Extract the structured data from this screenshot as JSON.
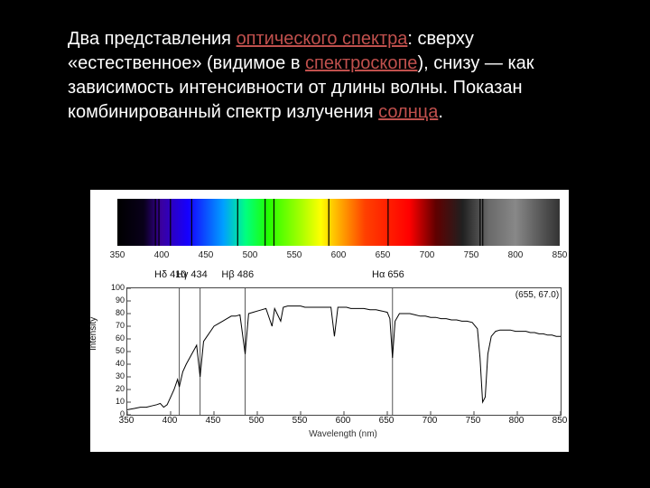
{
  "caption": {
    "t1": "Два представления ",
    "l1": "оптического спектра",
    "t2": ": сверху «естественное» (видимое в ",
    "l2": "спектроскопе",
    "t3": "), снизу — как зависимость интенсивности от длины волны. Показан комбинированный спектр излучения ",
    "l3": "солнца",
    "t4": "."
  },
  "spectrum_band": {
    "panel_bg": "#000000",
    "xmin": 350,
    "xmax": 850,
    "tick_values": [
      350,
      400,
      450,
      500,
      550,
      600,
      650,
      700,
      750,
      800,
      850
    ],
    "gradient_stops": [
      {
        "nm": 350,
        "color": "#000000"
      },
      {
        "nm": 380,
        "color": "#09001a"
      },
      {
        "nm": 400,
        "color": "#3a00a0"
      },
      {
        "nm": 430,
        "color": "#1500ff"
      },
      {
        "nm": 470,
        "color": "#00a0ff"
      },
      {
        "nm": 495,
        "color": "#00ff80"
      },
      {
        "nm": 520,
        "color": "#20ff00"
      },
      {
        "nm": 560,
        "color": "#b0ff00"
      },
      {
        "nm": 580,
        "color": "#ffff00"
      },
      {
        "nm": 600,
        "color": "#ffb000"
      },
      {
        "nm": 630,
        "color": "#ff4000"
      },
      {
        "nm": 680,
        "color": "#ff0000"
      },
      {
        "nm": 710,
        "color": "#600000"
      },
      {
        "nm": 740,
        "color": "#202020"
      },
      {
        "nm": 770,
        "color": "#6a6a6a"
      },
      {
        "nm": 800,
        "color": "#888888"
      },
      {
        "nm": 830,
        "color": "#555555"
      },
      {
        "nm": 850,
        "color": "#333333"
      }
    ],
    "dark_lines_nm": [
      393,
      397,
      410,
      434,
      486,
      517,
      527,
      589,
      656,
      760,
      763
    ]
  },
  "absorption_labels": [
    {
      "nm": 410,
      "text": "Hδ 410"
    },
    {
      "nm": 434,
      "text": "Hγ 434"
    },
    {
      "nm": 486,
      "text": "Hβ 486"
    },
    {
      "nm": 656,
      "text": "Hα 656"
    }
  ],
  "intensity_plot": {
    "xlabel": "Wavelength (nm)",
    "ylabel": "Intensity",
    "xmin": 350,
    "xmax": 850,
    "ymin": 0,
    "ymax": 100,
    "x_ticks": [
      350,
      400,
      450,
      500,
      550,
      600,
      650,
      700,
      750,
      800,
      850
    ],
    "y_ticks": [
      0,
      10,
      20,
      30,
      40,
      50,
      60,
      70,
      80,
      90,
      100
    ],
    "line_color": "#000000",
    "line_width": 1,
    "vrule_color": "#555555",
    "vrules_nm": [
      410,
      434,
      486,
      656
    ],
    "cursor_readout": {
      "text": "(655, 67.0)",
      "x_nm": 830,
      "y": 95
    },
    "data": [
      [
        350,
        4
      ],
      [
        358,
        5
      ],
      [
        365,
        6
      ],
      [
        372,
        6
      ],
      [
        378,
        7
      ],
      [
        384,
        8
      ],
      [
        388,
        9
      ],
      [
        392,
        6
      ],
      [
        396,
        8
      ],
      [
        400,
        14
      ],
      [
        404,
        20
      ],
      [
        408,
        28
      ],
      [
        410,
        22
      ],
      [
        414,
        34
      ],
      [
        418,
        40
      ],
      [
        422,
        45
      ],
      [
        426,
        50
      ],
      [
        430,
        55
      ],
      [
        434,
        30
      ],
      [
        438,
        58
      ],
      [
        442,
        62
      ],
      [
        446,
        66
      ],
      [
        450,
        70
      ],
      [
        455,
        72
      ],
      [
        460,
        74
      ],
      [
        465,
        76
      ],
      [
        470,
        78
      ],
      [
        475,
        78
      ],
      [
        480,
        79
      ],
      [
        486,
        48
      ],
      [
        490,
        80
      ],
      [
        495,
        81
      ],
      [
        500,
        82
      ],
      [
        505,
        83
      ],
      [
        510,
        84
      ],
      [
        517,
        70
      ],
      [
        520,
        84
      ],
      [
        527,
        74
      ],
      [
        530,
        85
      ],
      [
        535,
        86
      ],
      [
        540,
        86
      ],
      [
        545,
        86
      ],
      [
        550,
        86
      ],
      [
        555,
        85
      ],
      [
        560,
        85
      ],
      [
        565,
        85
      ],
      [
        570,
        85
      ],
      [
        575,
        85
      ],
      [
        580,
        85
      ],
      [
        585,
        85
      ],
      [
        589,
        62
      ],
      [
        593,
        85
      ],
      [
        598,
        85
      ],
      [
        603,
        85
      ],
      [
        608,
        84
      ],
      [
        613,
        84
      ],
      [
        618,
        84
      ],
      [
        623,
        84
      ],
      [
        630,
        83
      ],
      [
        637,
        83
      ],
      [
        644,
        82
      ],
      [
        650,
        81
      ],
      [
        653,
        76
      ],
      [
        656,
        45
      ],
      [
        659,
        74
      ],
      [
        664,
        80
      ],
      [
        670,
        80
      ],
      [
        676,
        80
      ],
      [
        682,
        79
      ],
      [
        688,
        78
      ],
      [
        694,
        78
      ],
      [
        700,
        77
      ],
      [
        706,
        77
      ],
      [
        712,
        76
      ],
      [
        718,
        76
      ],
      [
        724,
        75
      ],
      [
        730,
        75
      ],
      [
        736,
        74
      ],
      [
        742,
        74
      ],
      [
        748,
        73
      ],
      [
        754,
        68
      ],
      [
        757,
        45
      ],
      [
        760,
        10
      ],
      [
        763,
        14
      ],
      [
        766,
        48
      ],
      [
        770,
        62
      ],
      [
        775,
        66
      ],
      [
        780,
        67
      ],
      [
        786,
        67
      ],
      [
        792,
        67
      ],
      [
        798,
        66
      ],
      [
        804,
        66
      ],
      [
        810,
        66
      ],
      [
        815,
        65
      ],
      [
        820,
        65
      ],
      [
        825,
        64
      ],
      [
        830,
        64
      ],
      [
        835,
        63
      ],
      [
        840,
        63
      ],
      [
        845,
        62
      ],
      [
        850,
        62
      ]
    ]
  },
  "colors": {
    "page_bg": "#000000",
    "text": "#ffffff",
    "link": "#c0504d",
    "figure_bg": "#ffffff",
    "tick_text": "#111111"
  }
}
